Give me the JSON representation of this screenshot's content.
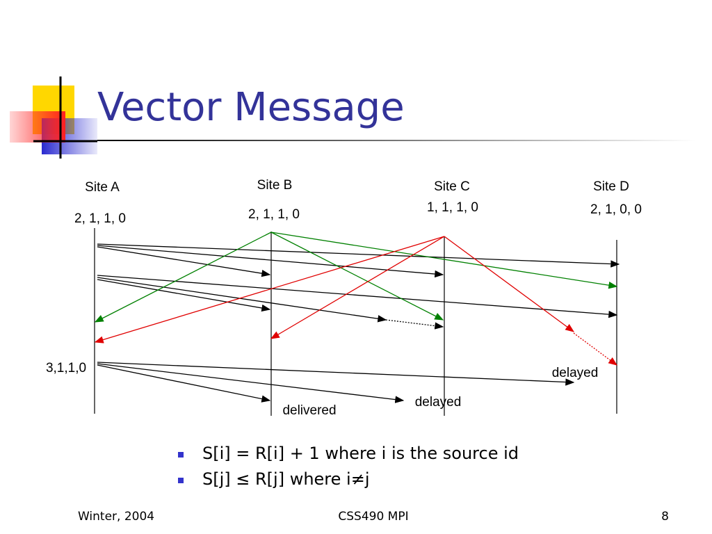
{
  "header": {
    "title": "Vector Message"
  },
  "sites": [
    {
      "label": "Site A",
      "vector": "2, 1, 1, 0"
    },
    {
      "label": "Site B",
      "vector": "2, 1, 1, 0"
    },
    {
      "label": "Site C",
      "vector": "1, 1, 1, 0"
    },
    {
      "label": "Site D",
      "vector": "2, 1, 0, 0"
    }
  ],
  "annotations": {
    "new_vector": "3,1,1,0",
    "delayed_d": "delayed",
    "delayed_c": "delayed",
    "delivered_b": "delivered"
  },
  "bullets": [
    "S[i] = R[i] + 1 where i is the source id",
    "S[j] ≤ R[j] where i≠j"
  ],
  "footer": {
    "left": "Winter, 2004",
    "center": "CSS490 MPI",
    "right": "8"
  }
}
